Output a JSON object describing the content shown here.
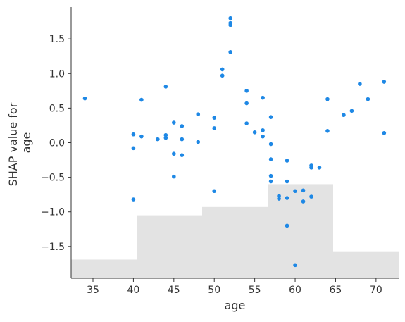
{
  "chart_data": {
    "type": "scatter",
    "title": "",
    "xlabel": "age",
    "ylabel_lines": [
      "SHAP value for",
      "age"
    ],
    "xlim": [
      32.3,
      72.8
    ],
    "ylim": [
      -1.96,
      1.96
    ],
    "xticks": [
      35,
      40,
      45,
      50,
      55,
      60,
      65,
      70
    ],
    "xtick_labels": [
      "35",
      "40",
      "45",
      "50",
      "55",
      "60",
      "65",
      "70"
    ],
    "yticks": [
      1.5,
      1.0,
      0.5,
      0.0,
      -0.5,
      -1.0,
      -1.5
    ],
    "ytick_labels": [
      "1.5",
      "1.0",
      "0.5",
      "0.0",
      "−0.5",
      "−1.0",
      "−1.5"
    ],
    "point_color": "#1e88e5",
    "histogram_color": "#e3e3e3",
    "background_histogram": [
      {
        "x0": 32.3,
        "x1": 40.4,
        "top": -1.69
      },
      {
        "x0": 40.4,
        "x1": 48.5,
        "top": -1.05
      },
      {
        "x0": 48.5,
        "x1": 56.6,
        "top": -0.93
      },
      {
        "x0": 56.6,
        "x1": 64.7,
        "top": -0.6
      },
      {
        "x0": 64.7,
        "x1": 72.8,
        "top": -1.57
      }
    ],
    "points": [
      [
        34,
        0.64
      ],
      [
        40,
        0.12
      ],
      [
        40,
        -0.08
      ],
      [
        40,
        -0.82
      ],
      [
        41,
        0.09
      ],
      [
        41,
        0.62
      ],
      [
        43,
        0.05
      ],
      [
        44,
        0.81
      ],
      [
        44,
        0.11
      ],
      [
        44,
        0.07
      ],
      [
        45,
        0.29
      ],
      [
        45,
        -0.16
      ],
      [
        45,
        -0.49
      ],
      [
        46,
        0.24
      ],
      [
        46,
        0.05
      ],
      [
        46,
        -0.18
      ],
      [
        48,
        0.41
      ],
      [
        48,
        0.01
      ],
      [
        50,
        0.36
      ],
      [
        50,
        0.21
      ],
      [
        50,
        -0.7
      ],
      [
        51,
        1.06
      ],
      [
        51,
        0.97
      ],
      [
        52,
        1.8
      ],
      [
        52,
        1.73
      ],
      [
        52,
        1.7
      ],
      [
        52,
        1.31
      ],
      [
        54,
        0.75
      ],
      [
        54,
        0.57
      ],
      [
        54,
        0.28
      ],
      [
        55,
        0.15
      ],
      [
        56,
        0.65
      ],
      [
        56,
        0.18
      ],
      [
        56,
        0.09
      ],
      [
        57,
        0.37
      ],
      [
        57,
        -0.02
      ],
      [
        57,
        -0.24
      ],
      [
        57,
        -0.48
      ],
      [
        57,
        -0.56
      ],
      [
        58,
        -0.77
      ],
      [
        58,
        -0.81
      ],
      [
        59,
        -0.26
      ],
      [
        59,
        -0.56
      ],
      [
        59,
        -0.8
      ],
      [
        59,
        -1.2
      ],
      [
        60,
        -0.7
      ],
      [
        60,
        -1.77
      ],
      [
        61,
        -0.69
      ],
      [
        61,
        -0.85
      ],
      [
        62,
        -0.33
      ],
      [
        62,
        -0.36
      ],
      [
        62,
        -0.78
      ],
      [
        63,
        -0.36
      ],
      [
        64,
        0.63
      ],
      [
        64,
        0.17
      ],
      [
        66,
        0.4
      ],
      [
        67,
        0.46
      ],
      [
        68,
        0.85
      ],
      [
        69,
        0.63
      ],
      [
        71,
        0.88
      ],
      [
        71,
        0.14
      ]
    ]
  }
}
